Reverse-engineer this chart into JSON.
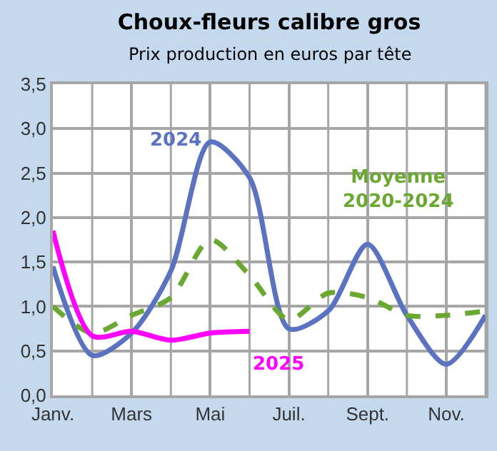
{
  "chart_data": {
    "type": "line",
    "title": "Choux-fleurs calibre gros",
    "subtitle": "Prix production en euros par tête",
    "categories": [
      "Janv.",
      null,
      "Mars",
      null,
      "Mai",
      null,
      "Juil.",
      null,
      "Sept.",
      null,
      "Nov.",
      null
    ],
    "series": [
      {
        "name": "2024",
        "color": "#5b72c0",
        "values": [
          1.45,
          0.45,
          0.7,
          1.4,
          2.85,
          2.45,
          0.75,
          0.95,
          1.7,
          0.9,
          0.35,
          0.9
        ]
      },
      {
        "name": "Moyenne 2020-2024",
        "color": "#6aa832",
        "line_style": "dashed",
        "values": [
          1.0,
          0.7,
          0.9,
          1.1,
          1.75,
          1.35,
          0.85,
          1.15,
          1.1,
          0.9,
          0.9,
          0.95
        ]
      },
      {
        "name": "2025",
        "color": "#ff00ff",
        "values": [
          1.85,
          0.67,
          0.72,
          0.62,
          0.7,
          0.72,
          null,
          null,
          null,
          null,
          null,
          null
        ]
      }
    ],
    "ylim": [
      0,
      3.5
    ],
    "yticks": [
      {
        "value": 0,
        "label": "0,0"
      },
      {
        "value": 0.5,
        "label": "0,5"
      },
      {
        "value": 1,
        "label": "1,0"
      },
      {
        "value": 1.5,
        "label": "1,5"
      },
      {
        "value": 2,
        "label": "2,0"
      },
      {
        "value": 2.5,
        "label": "2,5"
      },
      {
        "value": 3,
        "label": "3,0"
      },
      {
        "value": 3.5,
        "label": "3,5"
      }
    ],
    "grid": true,
    "legend": false,
    "marker": "none",
    "line_style": "solid"
  }
}
